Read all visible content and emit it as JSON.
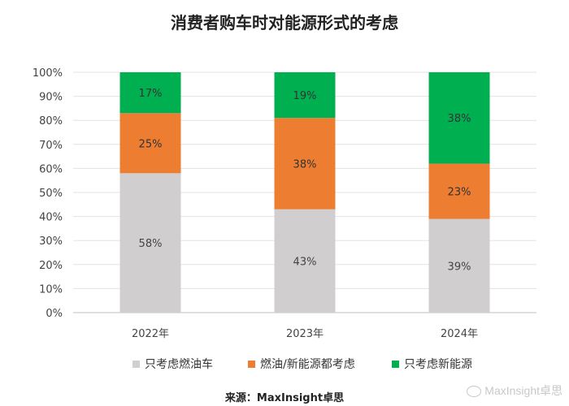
{
  "chart_data": {
    "type": "bar",
    "stacked": true,
    "title": "消费者购车时对能源形式的考虑",
    "categories": [
      "2022年",
      "2023年",
      "2024年"
    ],
    "series": [
      {
        "name": "只考虑燃油车",
        "values": [
          58,
          43,
          39
        ],
        "color": "#d0cece"
      },
      {
        "name": "燃油/新能源都考虑",
        "values": [
          25,
          38,
          23
        ],
        "color": "#ed7d31"
      },
      {
        "name": "只考虑新能源",
        "values": [
          17,
          19,
          38
        ],
        "color": "#00b050"
      }
    ],
    "ylim": [
      0,
      100
    ],
    "y_ticks": [
      "0%",
      "10%",
      "20%",
      "30%",
      "40%",
      "50%",
      "60%",
      "70%",
      "80%",
      "90%",
      "100%"
    ],
    "value_suffix": "%",
    "grid": true,
    "legend_position": "bottom"
  },
  "source": "来源：MaxInsight卓思",
  "watermark": "MaxInsight卓思"
}
